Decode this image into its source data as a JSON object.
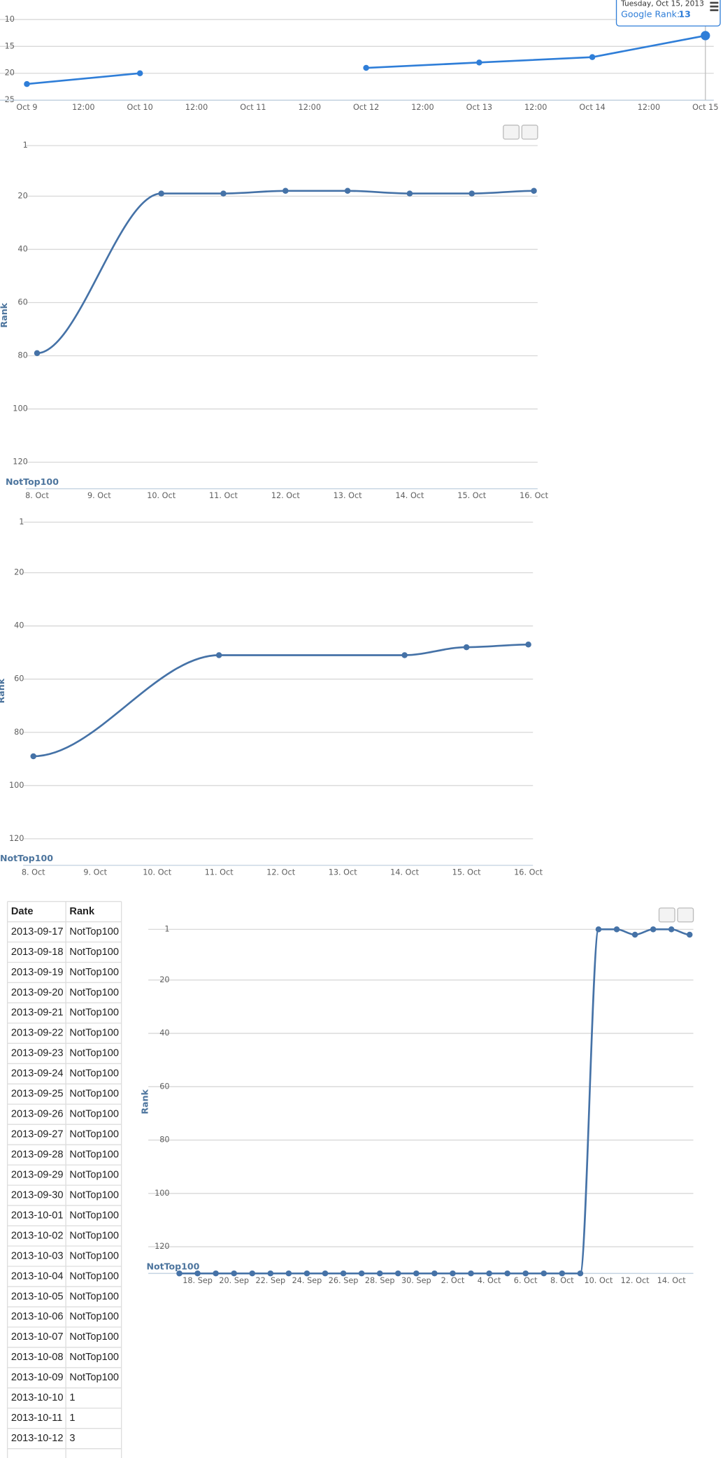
{
  "chart_data": [
    {
      "type": "line",
      "color": "#2f7ed8",
      "reversed": true,
      "grid": true,
      "categories": [
        "Oct 9",
        "12:00",
        "Oct 10",
        "12:00",
        "Oct 11",
        "12:00",
        "Oct 12",
        "12:00",
        "Oct 13",
        "12:00",
        "Oct 14",
        "12:00",
        "Oct 15"
      ],
      "x": [
        "Oct 9",
        "Oct 10",
        "Oct 11",
        "Oct 12",
        "Oct 13",
        "Oct 14",
        "Oct 15"
      ],
      "values": [
        22,
        20,
        null,
        19,
        18,
        17,
        13
      ],
      "ylim": [
        10,
        25
      ],
      "yticks": [
        10,
        15,
        20,
        25
      ],
      "tooltip": {
        "title": "Tuesday, Oct 15, 2013",
        "label": "Google Rank:"
      }
    },
    {
      "type": "spline",
      "color": "#4572A7",
      "reversed": true,
      "grid": true,
      "y_title": "Rank",
      "categories": [
        "8. Oct",
        "9. Oct",
        "10. Oct",
        "11. Oct",
        "12. Oct",
        "13. Oct",
        "14. Oct",
        "15. Oct",
        "16. Oct"
      ],
      "x": [
        "8. Oct",
        "10. Oct",
        "11. Oct",
        "12. Oct",
        "13. Oct",
        "14. Oct",
        "15. Oct",
        "16. Oct"
      ],
      "values": [
        79,
        19,
        19,
        18,
        18,
        19,
        19,
        18
      ],
      "ylim": [
        1,
        130
      ],
      "yticks": [
        1,
        20,
        40,
        60,
        80,
        100,
        120,
        {
          "value": 130,
          "label": "NotTop100"
        }
      ]
    },
    {
      "type": "spline",
      "color": "#4572A7",
      "reversed": true,
      "grid": true,
      "y_title": "Rank",
      "categories": [
        "8. Oct",
        "9. Oct",
        "10. Oct",
        "11. Oct",
        "12. Oct",
        "13. Oct",
        "14. Oct",
        "15. Oct",
        "16. Oct"
      ],
      "x": [
        "8. Oct",
        "11. Oct",
        "14. Oct",
        "15. Oct",
        "16. Oct"
      ],
      "values": [
        89,
        51,
        51,
        48,
        47
      ],
      "ylim": [
        1,
        130
      ],
      "yticks": [
        1,
        20,
        40,
        60,
        80,
        100,
        120,
        {
          "value": 130,
          "label": "NotTop100"
        }
      ]
    },
    {
      "type": "spline",
      "color": "#4572A7",
      "reversed": true,
      "grid": true,
      "y_title": "Rank",
      "categories": [
        null,
        "18. Sep",
        null,
        "20. Sep",
        null,
        "22. Sep",
        null,
        "24. Sep",
        null,
        "26. Sep",
        null,
        "28. Sep",
        null,
        "30. Sep",
        null,
        "2. Oct",
        null,
        "4. Oct",
        null,
        "6. Oct",
        null,
        "8. Oct",
        null,
        "10. Oct",
        null,
        "12. Oct",
        null,
        "14. Oct",
        null
      ],
      "values": [
        130,
        130,
        130,
        130,
        130,
        130,
        130,
        130,
        130,
        130,
        130,
        130,
        130,
        130,
        130,
        130,
        130,
        130,
        130,
        130,
        130,
        130,
        130,
        1,
        1,
        3,
        1,
        1,
        3
      ],
      "ylim": [
        1,
        130
      ],
      "yticks": [
        1,
        20,
        40,
        60,
        80,
        100,
        120,
        {
          "value": 130,
          "label": "NotTop100"
        }
      ]
    }
  ],
  "table": {
    "header": [
      "Date",
      "Rank"
    ],
    "rows": [
      [
        "2013-09-17",
        "NotTop100"
      ],
      [
        "2013-09-18",
        "NotTop100"
      ],
      [
        "2013-09-19",
        "NotTop100"
      ],
      [
        "2013-09-20",
        "NotTop100"
      ],
      [
        "2013-09-21",
        "NotTop100"
      ],
      [
        "2013-09-22",
        "NotTop100"
      ],
      [
        "2013-09-23",
        "NotTop100"
      ],
      [
        "2013-09-24",
        "NotTop100"
      ],
      [
        "2013-09-25",
        "NotTop100"
      ],
      [
        "2013-09-26",
        "NotTop100"
      ],
      [
        "2013-09-27",
        "NotTop100"
      ],
      [
        "2013-09-28",
        "NotTop100"
      ],
      [
        "2013-09-29",
        "NotTop100"
      ],
      [
        "2013-09-30",
        "NotTop100"
      ],
      [
        "2013-10-01",
        "NotTop100"
      ],
      [
        "2013-10-02",
        "NotTop100"
      ],
      [
        "2013-10-03",
        "NotTop100"
      ],
      [
        "2013-10-04",
        "NotTop100"
      ],
      [
        "2013-10-05",
        "NotTop100"
      ],
      [
        "2013-10-06",
        "NotTop100"
      ],
      [
        "2013-10-07",
        "NotTop100"
      ],
      [
        "2013-10-08",
        "NotTop100"
      ],
      [
        "2013-10-09",
        "NotTop100"
      ],
      [
        "2013-10-10",
        1
      ],
      [
        "2013-10-11",
        1
      ],
      [
        "2013-10-12",
        3
      ]
    ]
  }
}
